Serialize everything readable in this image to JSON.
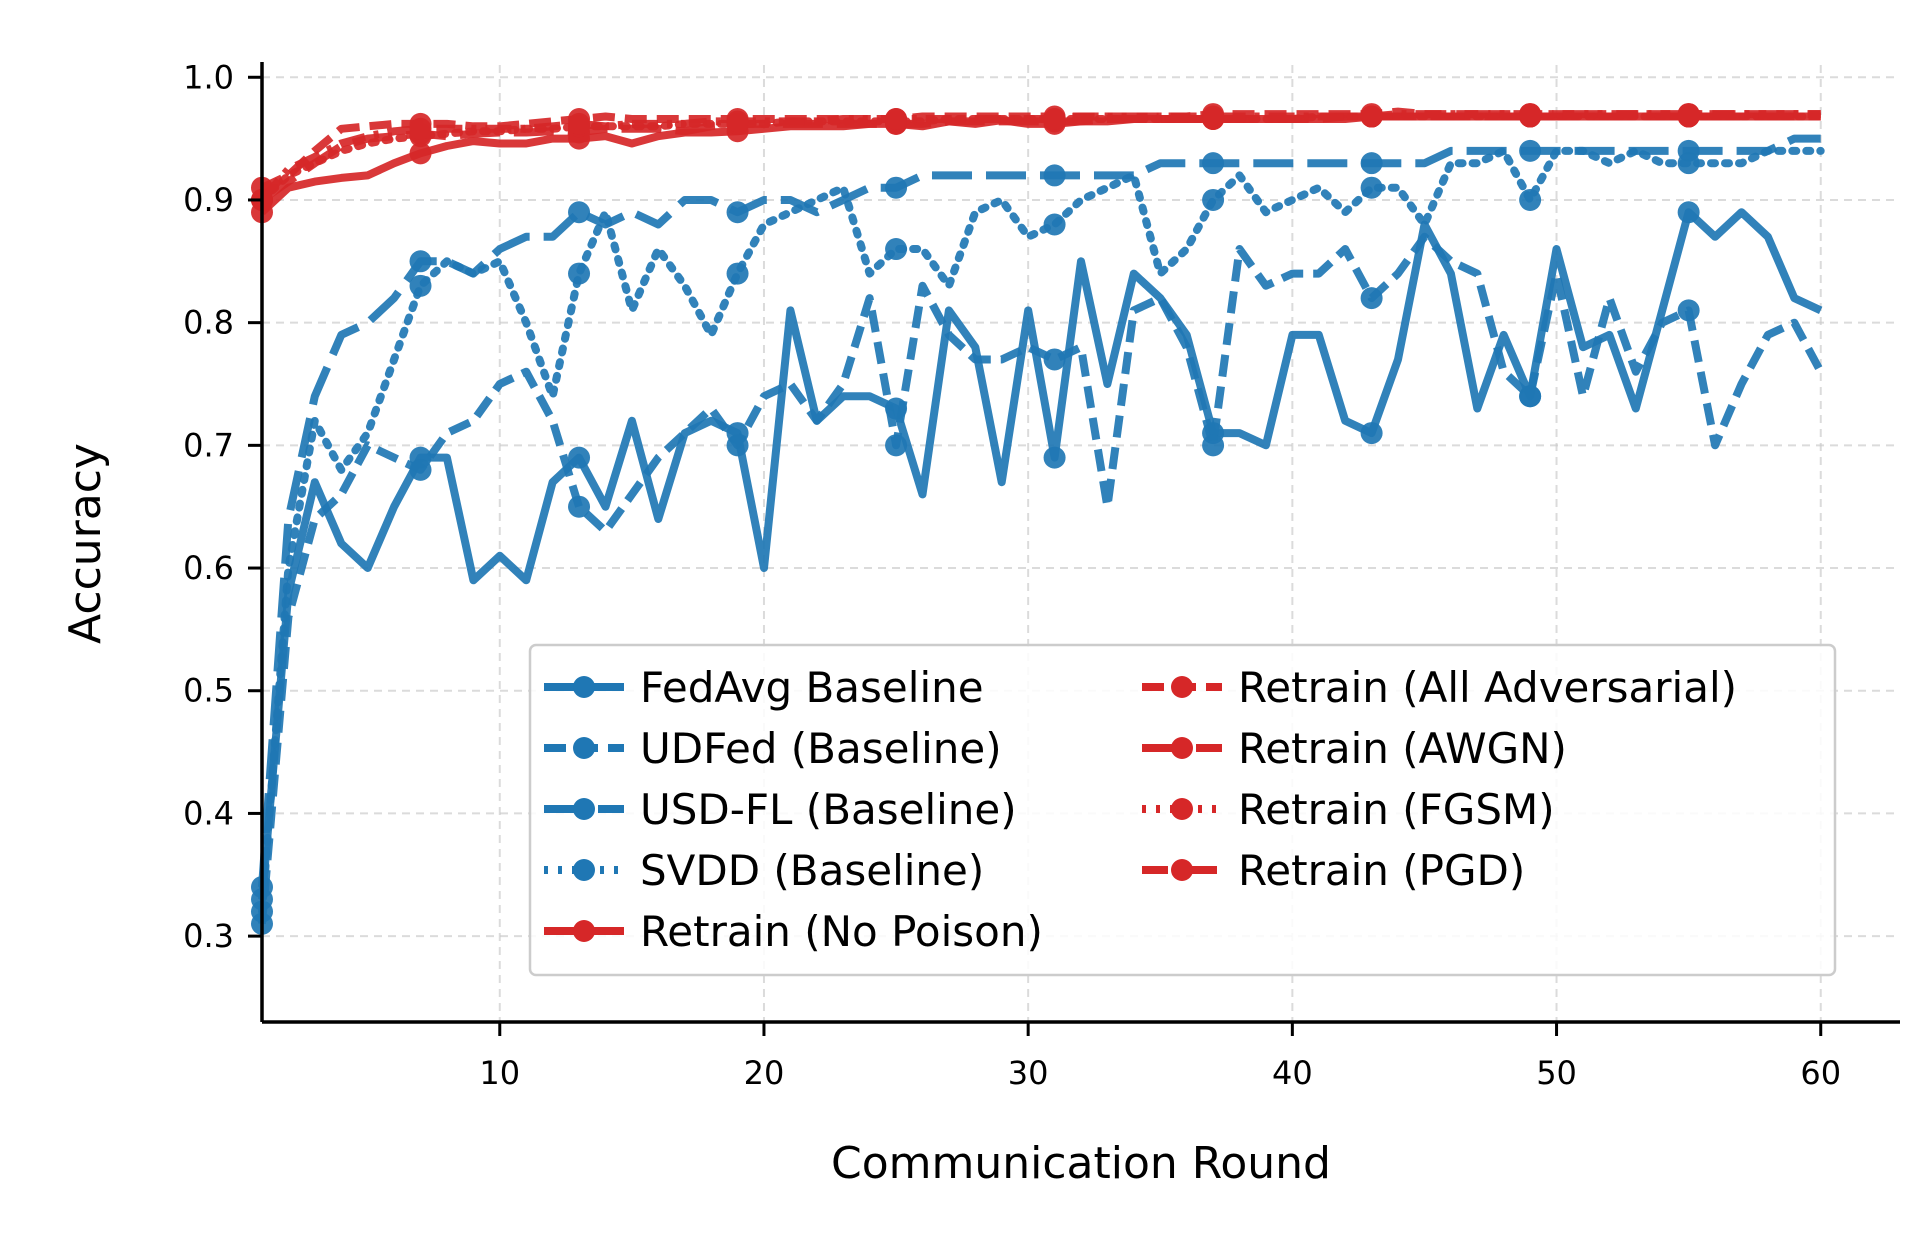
{
  "chart_data": {
    "type": "line",
    "title": "",
    "xlabel": "Communication Round",
    "ylabel": "Accuracy",
    "xlim": [
      1,
      63
    ],
    "ylim": [
      0.23,
      1.01
    ],
    "xticks": [
      10,
      20,
      30,
      40,
      50,
      60
    ],
    "yticks": [
      0.3,
      0.4,
      0.5,
      0.6,
      0.7,
      0.8,
      0.9,
      1.0
    ],
    "ytick_labels": [
      "0.3",
      "0.4",
      "0.5",
      "0.6",
      "0.7",
      "0.8",
      "0.9",
      "1.0"
    ],
    "grid": true,
    "legend_position": "bottom-right",
    "colors": {
      "blue": "#1f77b4",
      "red": "#d62728"
    },
    "series": [
      {
        "name": "FedAvg Baseline",
        "color": "#1f77b4",
        "dash": "solid",
        "marker_every": 6,
        "x": [
          1,
          2,
          3,
          4,
          5,
          6,
          7,
          8,
          9,
          10,
          11,
          12,
          13,
          14,
          15,
          16,
          17,
          18,
          19,
          20,
          21,
          22,
          23,
          24,
          25,
          26,
          27,
          28,
          29,
          30,
          31,
          32,
          33,
          34,
          35,
          36,
          37,
          38,
          39,
          40,
          41,
          42,
          43,
          44,
          45,
          46,
          47,
          48,
          49,
          50,
          51,
          52,
          53,
          54,
          55,
          56,
          57,
          58,
          59,
          60
        ],
        "values": [
          0.33,
          0.58,
          0.67,
          0.62,
          0.6,
          0.65,
          0.69,
          0.69,
          0.59,
          0.61,
          0.59,
          0.67,
          0.69,
          0.65,
          0.72,
          0.64,
          0.71,
          0.72,
          0.71,
          0.6,
          0.81,
          0.72,
          0.74,
          0.74,
          0.73,
          0.66,
          0.81,
          0.78,
          0.67,
          0.81,
          0.69,
          0.85,
          0.75,
          0.84,
          0.82,
          0.79,
          0.71,
          0.71,
          0.7,
          0.79,
          0.79,
          0.72,
          0.71,
          0.77,
          0.88,
          0.84,
          0.73,
          0.79,
          0.74,
          0.86,
          0.78,
          0.79,
          0.73,
          0.81,
          0.89,
          0.87,
          0.89,
          0.87,
          0.82,
          0.81
        ]
      },
      {
        "name": "UDFed (Baseline)",
        "color": "#1f77b4",
        "dash": "dashed",
        "marker_every": 6,
        "x": [
          1,
          2,
          3,
          4,
          5,
          6,
          7,
          8,
          9,
          10,
          11,
          12,
          13,
          14,
          15,
          16,
          17,
          18,
          19,
          20,
          21,
          22,
          23,
          24,
          25,
          26,
          27,
          28,
          29,
          30,
          31,
          32,
          33,
          34,
          35,
          36,
          37,
          38,
          39,
          40,
          41,
          42,
          43,
          44,
          45,
          46,
          47,
          48,
          49,
          50,
          51,
          52,
          53,
          54,
          55,
          56,
          57,
          58,
          59,
          60
        ],
        "values": [
          0.31,
          0.56,
          0.64,
          0.66,
          0.7,
          0.69,
          0.68,
          0.71,
          0.72,
          0.75,
          0.76,
          0.72,
          0.65,
          0.63,
          0.66,
          0.69,
          0.71,
          0.73,
          0.7,
          0.74,
          0.75,
          0.72,
          0.75,
          0.82,
          0.7,
          0.83,
          0.79,
          0.77,
          0.77,
          0.78,
          0.77,
          0.78,
          0.65,
          0.81,
          0.82,
          0.78,
          0.7,
          0.86,
          0.83,
          0.84,
          0.84,
          0.86,
          0.82,
          0.84,
          0.87,
          0.85,
          0.84,
          0.76,
          0.74,
          0.84,
          0.74,
          0.82,
          0.76,
          0.8,
          0.81,
          0.7,
          0.75,
          0.79,
          0.8,
          0.76
        ]
      },
      {
        "name": "USD-FL (Baseline)",
        "color": "#1f77b4",
        "dash": "longdash",
        "marker_every": 6,
        "x": [
          1,
          2,
          3,
          4,
          5,
          6,
          7,
          8,
          9,
          10,
          11,
          12,
          13,
          14,
          15,
          16,
          17,
          18,
          19,
          20,
          21,
          22,
          23,
          24,
          25,
          26,
          27,
          28,
          29,
          30,
          31,
          32,
          33,
          34,
          35,
          36,
          37,
          38,
          39,
          40,
          41,
          42,
          43,
          44,
          45,
          46,
          47,
          48,
          49,
          50,
          51,
          52,
          53,
          54,
          55,
          56,
          57,
          58,
          59,
          60
        ],
        "values": [
          0.34,
          0.64,
          0.74,
          0.79,
          0.8,
          0.82,
          0.85,
          0.85,
          0.84,
          0.86,
          0.87,
          0.87,
          0.89,
          0.88,
          0.89,
          0.88,
          0.9,
          0.9,
          0.89,
          0.9,
          0.9,
          0.89,
          0.9,
          0.91,
          0.91,
          0.92,
          0.92,
          0.92,
          0.92,
          0.92,
          0.92,
          0.92,
          0.92,
          0.92,
          0.93,
          0.93,
          0.93,
          0.93,
          0.93,
          0.93,
          0.93,
          0.93,
          0.93,
          0.93,
          0.93,
          0.94,
          0.94,
          0.94,
          0.94,
          0.94,
          0.94,
          0.94,
          0.94,
          0.94,
          0.94,
          0.94,
          0.94,
          0.94,
          0.95,
          0.95
        ]
      },
      {
        "name": "SVDD (Baseline)",
        "color": "#1f77b4",
        "dash": "dotted",
        "marker_every": 6,
        "x": [
          1,
          2,
          3,
          4,
          5,
          6,
          7,
          8,
          9,
          10,
          11,
          12,
          13,
          14,
          15,
          16,
          17,
          18,
          19,
          20,
          21,
          22,
          23,
          24,
          25,
          26,
          27,
          28,
          29,
          30,
          31,
          32,
          33,
          34,
          35,
          36,
          37,
          38,
          39,
          40,
          41,
          42,
          43,
          44,
          45,
          46,
          47,
          48,
          49,
          50,
          51,
          52,
          53,
          54,
          55,
          56,
          57,
          58,
          59,
          60
        ],
        "values": [
          0.32,
          0.6,
          0.72,
          0.68,
          0.71,
          0.77,
          0.83,
          0.85,
          0.84,
          0.85,
          0.8,
          0.74,
          0.84,
          0.89,
          0.81,
          0.86,
          0.83,
          0.79,
          0.84,
          0.88,
          0.89,
          0.9,
          0.91,
          0.84,
          0.86,
          0.86,
          0.83,
          0.89,
          0.9,
          0.87,
          0.88,
          0.9,
          0.91,
          0.92,
          0.84,
          0.86,
          0.9,
          0.92,
          0.89,
          0.9,
          0.91,
          0.89,
          0.91,
          0.91,
          0.88,
          0.93,
          0.93,
          0.94,
          0.9,
          0.94,
          0.94,
          0.93,
          0.94,
          0.93,
          0.93,
          0.93,
          0.93,
          0.94,
          0.94,
          0.94
        ]
      },
      {
        "name": "Retrain (No Poison)",
        "color": "#d62728",
        "dash": "solid",
        "marker_every": 6,
        "x": [
          1,
          2,
          3,
          4,
          5,
          6,
          7,
          8,
          9,
          10,
          11,
          12,
          13,
          14,
          15,
          16,
          17,
          18,
          19,
          20,
          21,
          22,
          23,
          24,
          25,
          26,
          27,
          28,
          29,
          30,
          31,
          32,
          33,
          34,
          35,
          36,
          37,
          38,
          39,
          40,
          41,
          42,
          43,
          44,
          45,
          46,
          47,
          48,
          49,
          50,
          51,
          52,
          53,
          54,
          55,
          56,
          57,
          58,
          59,
          60
        ],
        "values": [
          0.89,
          0.91,
          0.915,
          0.918,
          0.92,
          0.93,
          0.938,
          0.944,
          0.948,
          0.946,
          0.946,
          0.95,
          0.95,
          0.952,
          0.946,
          0.952,
          0.955,
          0.955,
          0.956,
          0.958,
          0.96,
          0.96,
          0.96,
          0.962,
          0.962,
          0.96,
          0.964,
          0.962,
          0.965,
          0.962,
          0.962,
          0.964,
          0.964,
          0.966,
          0.966,
          0.966,
          0.966,
          0.966,
          0.966,
          0.966,
          0.966,
          0.966,
          0.968,
          0.968,
          0.968,
          0.968,
          0.968,
          0.968,
          0.968,
          0.968,
          0.968,
          0.968,
          0.968,
          0.968,
          0.968,
          0.968,
          0.968,
          0.968,
          0.968,
          0.968
        ]
      },
      {
        "name": "Retrain (All Adversarial)",
        "color": "#d62728",
        "dash": "dashed",
        "marker_every": 6,
        "x": [
          1,
          2,
          3,
          4,
          5,
          6,
          7,
          8,
          9,
          10,
          11,
          12,
          13,
          14,
          15,
          16,
          17,
          18,
          19,
          20,
          21,
          22,
          23,
          24,
          25,
          26,
          27,
          28,
          29,
          30,
          31,
          32,
          33,
          34,
          35,
          36,
          37,
          38,
          39,
          40,
          41,
          42,
          43,
          44,
          45,
          46,
          47,
          48,
          49,
          50,
          51,
          52,
          53,
          54,
          55,
          56,
          57,
          58,
          59,
          60
        ],
        "values": [
          0.91,
          0.92,
          0.94,
          0.958,
          0.96,
          0.962,
          0.962,
          0.962,
          0.96,
          0.96,
          0.962,
          0.964,
          0.966,
          0.968,
          0.966,
          0.966,
          0.966,
          0.966,
          0.966,
          0.966,
          0.966,
          0.966,
          0.966,
          0.966,
          0.966,
          0.968,
          0.968,
          0.968,
          0.968,
          0.968,
          0.968,
          0.968,
          0.968,
          0.968,
          0.968,
          0.968,
          0.97,
          0.97,
          0.97,
          0.97,
          0.97,
          0.97,
          0.97,
          0.972,
          0.97,
          0.97,
          0.97,
          0.97,
          0.97,
          0.97,
          0.97,
          0.97,
          0.97,
          0.97,
          0.97,
          0.97,
          0.97,
          0.97,
          0.97,
          0.97
        ]
      },
      {
        "name": "Retrain (AWGN)",
        "color": "#d62728",
        "dash": "longdash",
        "marker_every": 6,
        "x": [
          1,
          2,
          3,
          4,
          5,
          6,
          7,
          8,
          9,
          10,
          11,
          12,
          13,
          14,
          15,
          16,
          17,
          18,
          19,
          20,
          21,
          22,
          23,
          24,
          25,
          26,
          27,
          28,
          29,
          30,
          31,
          32,
          33,
          34,
          35,
          36,
          37,
          38,
          39,
          40,
          41,
          42,
          43,
          44,
          45,
          46,
          47,
          48,
          49,
          50,
          51,
          52,
          53,
          54,
          55,
          56,
          57,
          58,
          59,
          60
        ],
        "values": [
          0.9,
          0.915,
          0.93,
          0.944,
          0.95,
          0.952,
          0.954,
          0.952,
          0.954,
          0.955,
          0.955,
          0.956,
          0.955,
          0.958,
          0.958,
          0.958,
          0.956,
          0.96,
          0.962,
          0.962,
          0.962,
          0.962,
          0.962,
          0.962,
          0.962,
          0.962,
          0.964,
          0.964,
          0.964,
          0.964,
          0.964,
          0.964,
          0.966,
          0.966,
          0.966,
          0.966,
          0.966,
          0.966,
          0.966,
          0.966,
          0.966,
          0.968,
          0.968,
          0.968,
          0.968,
          0.968,
          0.968,
          0.968,
          0.968,
          0.968,
          0.968,
          0.968,
          0.968,
          0.968,
          0.968,
          0.968,
          0.968,
          0.968,
          0.968,
          0.968
        ]
      },
      {
        "name": "Retrain (FGSM)",
        "color": "#d62728",
        "dash": "dotted",
        "marker_every": 6,
        "x": [
          1,
          2,
          3,
          4,
          5,
          6,
          7,
          8,
          9,
          10,
          11,
          12,
          13,
          14,
          15,
          16,
          17,
          18,
          19,
          20,
          21,
          22,
          23,
          24,
          25,
          26,
          27,
          28,
          29,
          30,
          31,
          32,
          33,
          34,
          35,
          36,
          37,
          38,
          39,
          40,
          41,
          42,
          43,
          44,
          45,
          46,
          47,
          48,
          49,
          50,
          51,
          52,
          53,
          54,
          55,
          56,
          57,
          58,
          59,
          60
        ],
        "values": [
          0.9,
          0.92,
          0.93,
          0.94,
          0.946,
          0.95,
          0.952,
          0.954,
          0.956,
          0.956,
          0.958,
          0.958,
          0.96,
          0.96,
          0.96,
          0.96,
          0.962,
          0.962,
          0.962,
          0.962,
          0.964,
          0.964,
          0.964,
          0.964,
          0.964,
          0.964,
          0.966,
          0.966,
          0.966,
          0.966,
          0.966,
          0.966,
          0.966,
          0.966,
          0.966,
          0.966,
          0.966,
          0.966,
          0.966,
          0.966,
          0.968,
          0.968,
          0.968,
          0.968,
          0.968,
          0.968,
          0.968,
          0.968,
          0.968,
          0.968,
          0.968,
          0.968,
          0.968,
          0.968,
          0.968,
          0.968,
          0.968,
          0.968,
          0.968,
          0.968
        ]
      },
      {
        "name": "Retrain (PGD)",
        "color": "#d62728",
        "dash": "dashdot",
        "marker_every": 6,
        "x": [
          1,
          2,
          3,
          4,
          5,
          6,
          7,
          8,
          9,
          10,
          11,
          12,
          13,
          14,
          15,
          16,
          17,
          18,
          19,
          20,
          21,
          22,
          23,
          24,
          25,
          26,
          27,
          28,
          29,
          30,
          31,
          32,
          33,
          34,
          35,
          36,
          37,
          38,
          39,
          40,
          41,
          42,
          43,
          44,
          45,
          46,
          47,
          48,
          49,
          50,
          51,
          52,
          53,
          54,
          55,
          56,
          57,
          58,
          59,
          60
        ],
        "values": [
          0.9,
          0.925,
          0.935,
          0.946,
          0.952,
          0.956,
          0.958,
          0.958,
          0.958,
          0.958,
          0.958,
          0.96,
          0.962,
          0.96,
          0.962,
          0.962,
          0.962,
          0.964,
          0.964,
          0.964,
          0.964,
          0.964,
          0.966,
          0.966,
          0.966,
          0.966,
          0.966,
          0.966,
          0.966,
          0.966,
          0.966,
          0.968,
          0.968,
          0.968,
          0.968,
          0.968,
          0.968,
          0.968,
          0.968,
          0.968,
          0.968,
          0.968,
          0.968,
          0.97,
          0.97,
          0.97,
          0.97,
          0.97,
          0.97,
          0.97,
          0.97,
          0.97,
          0.97,
          0.97,
          0.97,
          0.97,
          0.97,
          0.97,
          0.97,
          0.97
        ]
      }
    ]
  }
}
